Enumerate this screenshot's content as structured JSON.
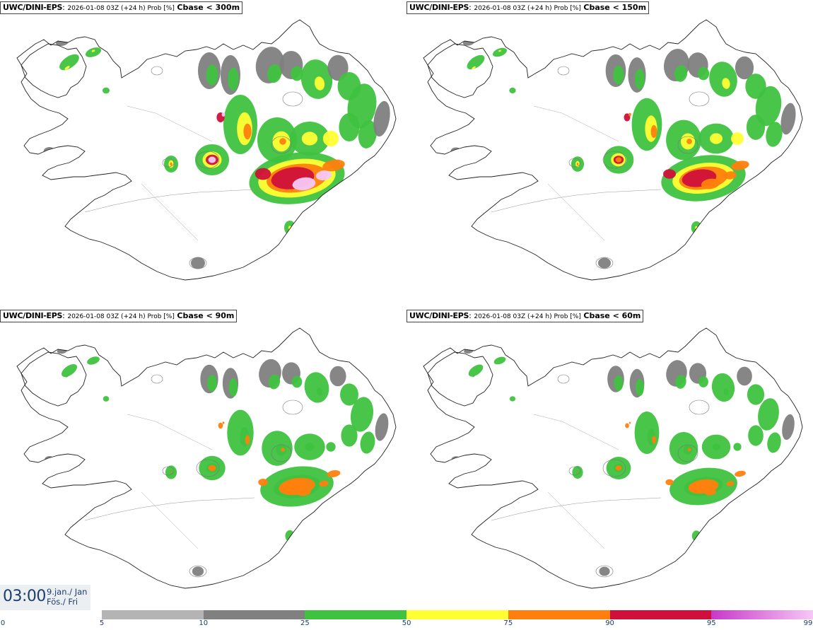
{
  "panels": [
    {
      "model": "UWC/DINI-EPS",
      "meta": "2026-01-08 03Z (+24 h) Prob [%]",
      "variable": "Cbase < 300m",
      "intensity": 1.0
    },
    {
      "model": "UWC/DINI-EPS",
      "meta": "2026-01-08 03Z (+24 h) Prob [%]",
      "variable": "Cbase < 150m",
      "intensity": 0.8
    },
    {
      "model": "UWC/DINI-EPS",
      "meta": "2026-01-08 03Z (+24 h) Prob [%]",
      "variable": "Cbase < 90m",
      "intensity": 0.6
    },
    {
      "model": "UWC/DINI-EPS",
      "meta": "2026-01-08 03Z (+24 h) Prob [%]",
      "variable": "Cbase < 60m",
      "intensity": 0.5
    }
  ],
  "time": {
    "clock": "03:00",
    "date_line1": "9.jan./ Jan",
    "date_line2": "Fös./ Fri"
  },
  "colorbar": {
    "ticks": [
      "0",
      "5",
      "10",
      "25",
      "50",
      "75",
      "90",
      "95",
      "99"
    ],
    "classes": [
      {
        "from": 5,
        "to": 10,
        "color": "#b4b4b4"
      },
      {
        "from": 10,
        "to": 25,
        "color": "#808080"
      },
      {
        "from": 25,
        "to": 50,
        "color": "#3fc23f"
      },
      {
        "from": 50,
        "to": 75,
        "color": "#ffff33"
      },
      {
        "from": 75,
        "to": 90,
        "color": "#ff7f0e"
      },
      {
        "from": 90,
        "to": 95,
        "color": "#d0103a"
      },
      {
        "from": 95,
        "to": 99,
        "color": "#c838c8",
        "to_color": "#f6c8f6"
      }
    ]
  }
}
